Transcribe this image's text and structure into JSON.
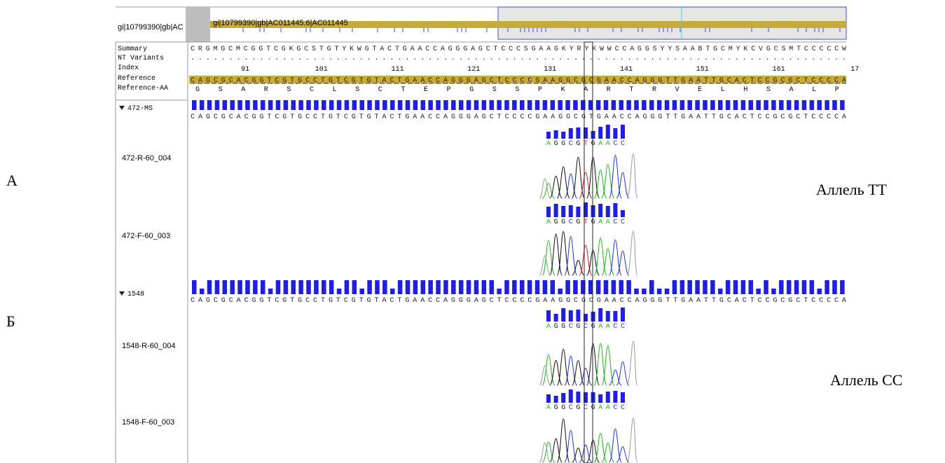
{
  "overview": {
    "label": "gi|10799390|gb|AC",
    "track": "gi|10799390|gb|AC011445.6|AC011445"
  },
  "rows": {
    "labels": [
      "Summary",
      "NT Variants",
      "Index",
      "Reference",
      "Reference-AA"
    ],
    "summary": "CRGMGCMCGGTCGKGCSTGTYKWGTACTGAACCAGGGAGCTCCCSGAAGKYRYKWWCCAGGSYYSAABTGCMYKCVGCSMTCCCCCW",
    "nt_variants": "......................................................................................",
    "index": [
      "91",
      "101",
      "111",
      "121",
      "131",
      "141",
      "151",
      "161",
      "17"
    ],
    "reference": "CAGCGCACGGTCGTGCCTGTCGTGTACTGAACCAGGGAGCTCCCCGAAGGCGCGAACCAGGGTTGAATTGCACTCCGCGCTCCCCA",
    "reference_aa": [
      "G",
      "S",
      "A",
      "R",
      "S",
      "C",
      "L",
      "S",
      "C",
      "T",
      "E",
      "P",
      "G",
      "S",
      "S",
      "P",
      "K",
      "A",
      "R",
      "T",
      "R",
      "V",
      "E",
      "L",
      "H",
      "S",
      "A",
      "L",
      "P"
    ]
  },
  "samples": [
    {
      "name": "472-MS",
      "consensus": "CAGCGCACGGTCGTGCCTGTCGTGTACTGAACCAGGGAGCTCCCCGAAGGCGTGAACCAGGGTTGAATTGCACTCCGCGCTCCCCA",
      "reads": [
        {
          "name": "472-R-60_004",
          "bases": [
            "A",
            "G",
            "G",
            "C",
            "G",
            "T",
            "G",
            "A",
            "A",
            "C",
            "C"
          ]
        },
        {
          "name": "472-F-60_003",
          "bases": [
            "A",
            "G",
            "G",
            "C",
            "G",
            "T",
            "G",
            "A",
            "A",
            "C",
            "C"
          ]
        }
      ]
    },
    {
      "name": "1548",
      "consensus": "CAGCGCACGGTCGTGCCTGTCGTGTACTGAACCAGGGAGCTCCCCGAAGGCGCGAACCAGGGTTGAATTGCACTCCGCGCTCCCCA",
      "reads": [
        {
          "name": "1548-R-60_004",
          "bases": [
            "A",
            "G",
            "G",
            "C",
            "G",
            "C",
            "G",
            "A",
            "A",
            "C",
            "C"
          ]
        },
        {
          "name": "1548-F-60_003",
          "bases": [
            "A",
            "G",
            "G",
            "C",
            "G",
            "C",
            "G",
            "A",
            "A",
            "C",
            "C"
          ]
        }
      ]
    }
  ],
  "annotations": [
    {
      "letter": "А",
      "allele": "Аллель ТТ"
    },
    {
      "letter": "Б",
      "allele": "Аллель СС"
    }
  ]
}
